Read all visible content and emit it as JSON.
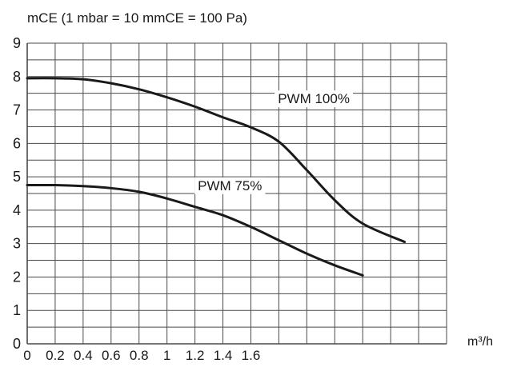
{
  "chart_data": {
    "type": "line",
    "ylabel": "mCE (1 mbar = 10 mmCE = 100 Pa)",
    "xlabel_unit": "m³/h",
    "ylim": [
      0,
      9
    ],
    "yticks": [
      "0",
      "1",
      "2",
      "3",
      "4",
      "5",
      "6",
      "7",
      "8",
      "9"
    ],
    "xlim": [
      0,
      3.0
    ],
    "xticks": [
      {
        "value": 0,
        "label": "0"
      },
      {
        "value": 0.2,
        "label": "0.2"
      },
      {
        "value": 0.4,
        "label": "0.4"
      },
      {
        "value": 0.6,
        "label": "0.6"
      },
      {
        "value": 0.8,
        "label": "0.8"
      },
      {
        "value": 1.0,
        "label": "1"
      },
      {
        "value": 1.2,
        "label": "1.2"
      },
      {
        "value": 1.4,
        "label": "1.4"
      },
      {
        "value": 1.6,
        "label": "1.6"
      }
    ],
    "grid": true,
    "series": [
      {
        "name": "PWM 100%",
        "x": [
          0,
          0.2,
          0.4,
          0.6,
          0.8,
          1.0,
          1.2,
          1.4,
          1.6,
          1.8,
          2.0,
          2.2,
          2.4,
          2.7
        ],
        "y": [
          7.95,
          7.95,
          7.92,
          7.8,
          7.62,
          7.38,
          7.1,
          6.78,
          6.48,
          6.05,
          5.2,
          4.3,
          3.6,
          3.05
        ]
      },
      {
        "name": "PWM 75%",
        "x": [
          0,
          0.2,
          0.4,
          0.6,
          0.8,
          1.0,
          1.2,
          1.4,
          1.6,
          1.8,
          2.0,
          2.2,
          2.4
        ],
        "y": [
          4.75,
          4.75,
          4.72,
          4.66,
          4.55,
          4.35,
          4.1,
          3.85,
          3.5,
          3.1,
          2.7,
          2.35,
          2.05
        ]
      }
    ],
    "colors": {
      "line": "#1a1a1a",
      "grid": "#4a4a4a"
    }
  }
}
